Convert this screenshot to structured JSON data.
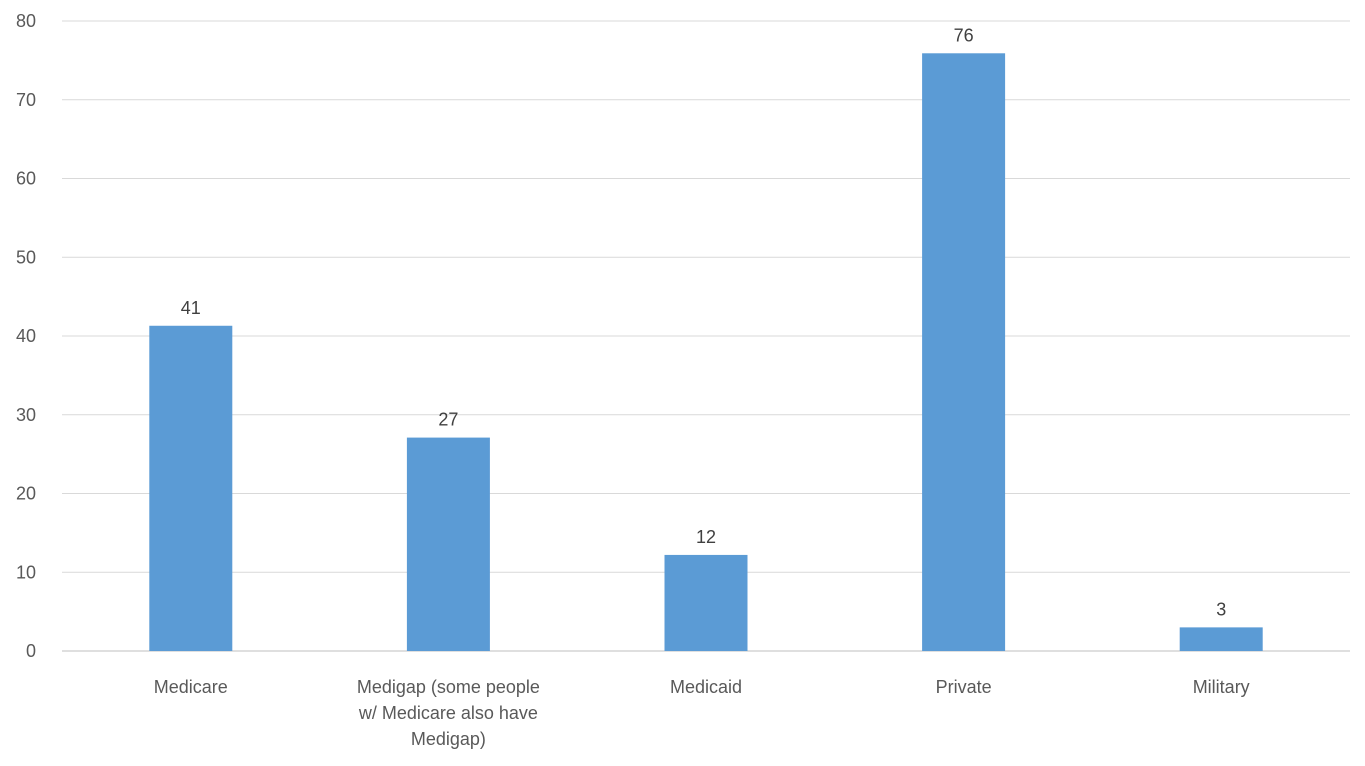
{
  "chart_data": {
    "type": "bar",
    "title": "",
    "xlabel": "",
    "ylabel": "",
    "categories": [
      [
        "Medicare"
      ],
      [
        "Medigap (some people",
        "w/ Medicare also have",
        "Medigap)"
      ],
      [
        "Medicaid"
      ],
      [
        "Private"
      ],
      [
        "Military"
      ]
    ],
    "values": [
      41.3,
      27.1,
      12.2,
      75.9,
      3.0
    ],
    "data_labels": [
      "41",
      "27",
      "12",
      "76",
      "3"
    ],
    "ylim": [
      0,
      80
    ],
    "yticks": [
      0,
      10,
      20,
      30,
      40,
      50,
      60,
      70,
      80
    ],
    "bar_color": "#5b9bd5",
    "grid": true,
    "legend": "none"
  }
}
